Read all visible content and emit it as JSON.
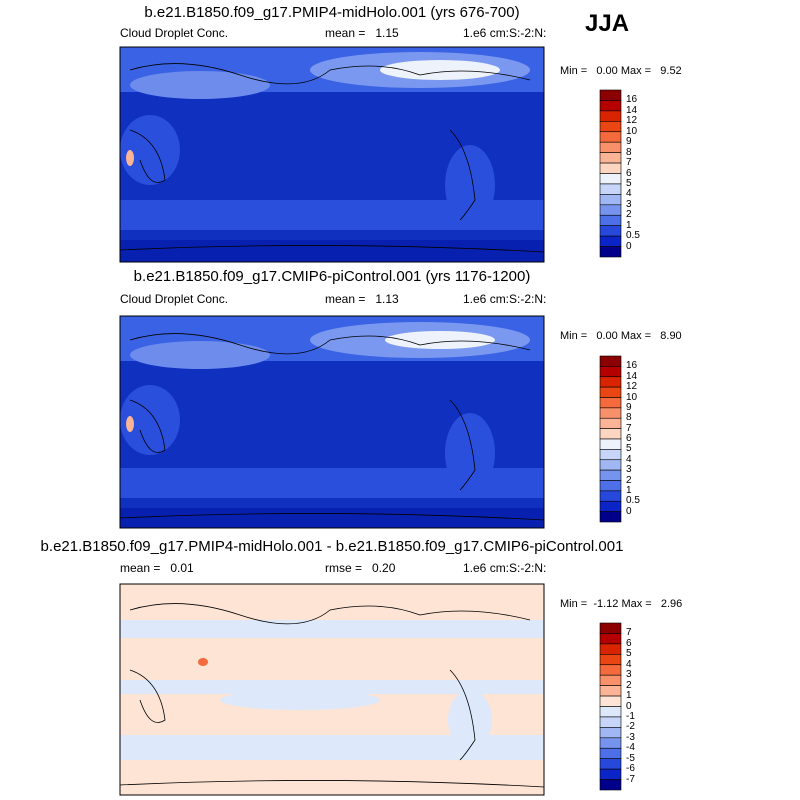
{
  "season": "JJA",
  "panels": [
    {
      "title": "b.e21.B1850.f09_g17.PMIP4-midHolo.001 (yrs 676-700)",
      "left": "Cloud Droplet Conc.",
      "center": "mean =   1.15",
      "right": "1.e6 cm:S:-2:N:",
      "minmax": "Min =   0.00 Max =   9.52",
      "colorbar_labels": [
        "16",
        "14",
        "12",
        "10",
        "9",
        "8",
        "7",
        "6",
        "5",
        "4",
        "3",
        "2",
        "1",
        "0.5",
        "0"
      ],
      "colorbar_colors": [
        "#8b0000",
        "#b50000",
        "#d82400",
        "#ea4614",
        "#f46a3c",
        "#f8906a",
        "#fbb596",
        "#fdd6c2",
        "#eef2fb",
        "#c6d5f8",
        "#a0b7f3",
        "#7694ee",
        "#4d6fe7",
        "#2649dc",
        "#0a24c8",
        "#00008a"
      ]
    },
    {
      "title": "b.e21.B1850.f09_g17.CMIP6-piControl.001 (yrs 1176-1200)",
      "left": "Cloud Droplet Conc.",
      "center": "mean =   1.13",
      "right": "1.e6 cm:S:-2:N:",
      "minmax": "Min =   0.00 Max =   8.90",
      "colorbar_labels": [
        "16",
        "14",
        "12",
        "10",
        "9",
        "8",
        "7",
        "6",
        "5",
        "4",
        "3",
        "2",
        "1",
        "0.5",
        "0"
      ],
      "colorbar_colors": [
        "#8b0000",
        "#b50000",
        "#d82400",
        "#ea4614",
        "#f46a3c",
        "#f8906a",
        "#fbb596",
        "#fdd6c2",
        "#eef2fb",
        "#c6d5f8",
        "#a0b7f3",
        "#7694ee",
        "#4d6fe7",
        "#2649dc",
        "#0a24c8",
        "#00008a"
      ]
    },
    {
      "title": "b.e21.B1850.f09_g17.PMIP4-midHolo.001 - b.e21.B1850.f09_g17.CMIP6-piControl.001",
      "left": "mean =   0.01",
      "center": "rmse =   0.20",
      "right": "1.e6 cm:S:-2:N:",
      "minmax": "Min =  -1.12 Max =   2.96",
      "colorbar_labels": [
        "7",
        "6",
        "5",
        "4",
        "3",
        "2",
        "1",
        "0",
        "-1",
        "-2",
        "-3",
        "-4",
        "-5",
        "-6",
        "-7"
      ],
      "colorbar_colors": [
        "#8b0000",
        "#b50000",
        "#d82400",
        "#ea4614",
        "#f46a3c",
        "#f8906a",
        "#fbb596",
        "#fde4d4",
        "#dde8fa",
        "#c6d5f8",
        "#a0b7f3",
        "#7694ee",
        "#4d6fe7",
        "#2649dc",
        "#0a24c8",
        "#00008a"
      ]
    }
  ]
}
